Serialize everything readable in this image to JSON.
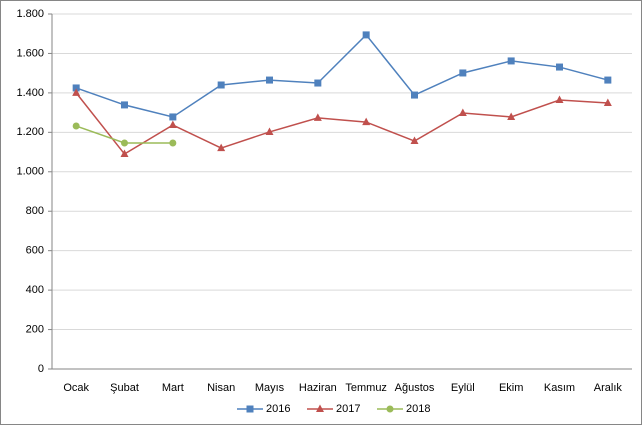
{
  "chart_data": {
    "type": "line",
    "categories": [
      "Ocak",
      "Şubat",
      "Mart",
      "Nisan",
      "Mayıs",
      "Haziran",
      "Temmuz",
      "Ağustos",
      "Eylül",
      "Ekim",
      "Kasım",
      "Aralık"
    ],
    "series": [
      {
        "name": "2016",
        "color": "#4f81bd",
        "marker": "square",
        "values": [
          1425,
          1339,
          1278,
          1440,
          1465,
          1450,
          1694,
          1389,
          1501,
          1562,
          1531,
          1465
        ]
      },
      {
        "name": "2017",
        "color": "#c0504d",
        "marker": "triangle",
        "values": [
          1400,
          1090,
          1237,
          1120,
          1202,
          1273,
          1252,
          1156,
          1298,
          1278,
          1364,
          1349
        ]
      },
      {
        "name": "2018",
        "color": "#9bbb59",
        "marker": "circle",
        "values": [
          1232,
          1146,
          1146,
          null,
          null,
          null,
          null,
          null,
          null,
          null,
          null,
          null
        ]
      }
    ],
    "ylim": [
      0,
      1800
    ],
    "yticks": [
      0,
      200,
      400,
      600,
      800,
      {
        "value": 1000,
        "label": "1.000"
      },
      {
        "value": 1200,
        "label": "1.200"
      },
      {
        "value": 1400,
        "label": "1.400"
      },
      {
        "value": 1600,
        "label": "1.600"
      },
      {
        "value": 1800,
        "label": "1.800"
      }
    ],
    "grid": true,
    "legend": "bottom"
  }
}
